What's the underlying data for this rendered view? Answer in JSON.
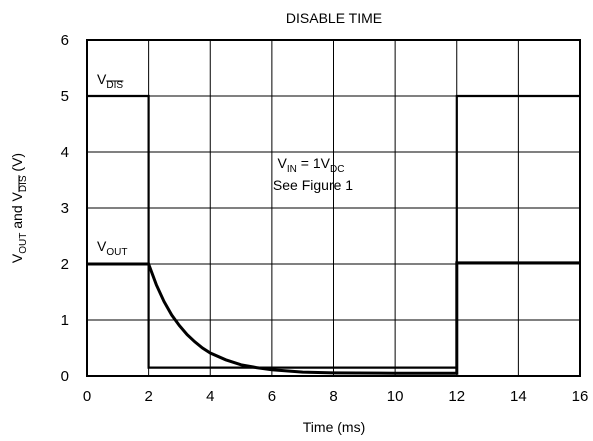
{
  "chart_data": {
    "type": "line",
    "title": "DISABLE TIME",
    "xlabel": "Time (ms)",
    "ylabel": {
      "base1": "V",
      "sub1": "OUT",
      "mid": " and V",
      "sub2": "DIS",
      "tail": " (V)"
    },
    "xlim": [
      0,
      16
    ],
    "ylim": [
      0,
      6
    ],
    "xticks": [
      0,
      2,
      4,
      6,
      8,
      10,
      12,
      14,
      16
    ],
    "yticks": [
      0,
      1,
      2,
      3,
      4,
      5,
      6
    ],
    "grid": true,
    "annotation": {
      "line1": {
        "base": "V",
        "sub": "IN",
        "mid": " = 1V",
        "sub2": "DC"
      },
      "line2": "See Figure 1"
    },
    "series": [
      {
        "label": {
          "base": "V",
          "sub": "DIS"
        },
        "points": [
          [
            0,
            5
          ],
          [
            2,
            5
          ],
          [
            2,
            0.15
          ],
          [
            12,
            0.15
          ],
          [
            12,
            5
          ],
          [
            16,
            5
          ]
        ]
      },
      {
        "label": {
          "base": "V",
          "sub": "OUT"
        },
        "points": [
          [
            0,
            2
          ],
          [
            2,
            2
          ],
          [
            2.25,
            1.63
          ],
          [
            2.5,
            1.33
          ],
          [
            2.75,
            1.09
          ],
          [
            3,
            0.9
          ],
          [
            3.25,
            0.74
          ],
          [
            3.5,
            0.61
          ],
          [
            3.75,
            0.5
          ],
          [
            4,
            0.41
          ],
          [
            4.5,
            0.29
          ],
          [
            5,
            0.2
          ],
          [
            5.5,
            0.15
          ],
          [
            6,
            0.11
          ],
          [
            7,
            0.07
          ],
          [
            8,
            0.055
          ],
          [
            10,
            0.05
          ],
          [
            12,
            0.05
          ],
          [
            12,
            2.02
          ],
          [
            16,
            2.02
          ]
        ]
      }
    ]
  }
}
